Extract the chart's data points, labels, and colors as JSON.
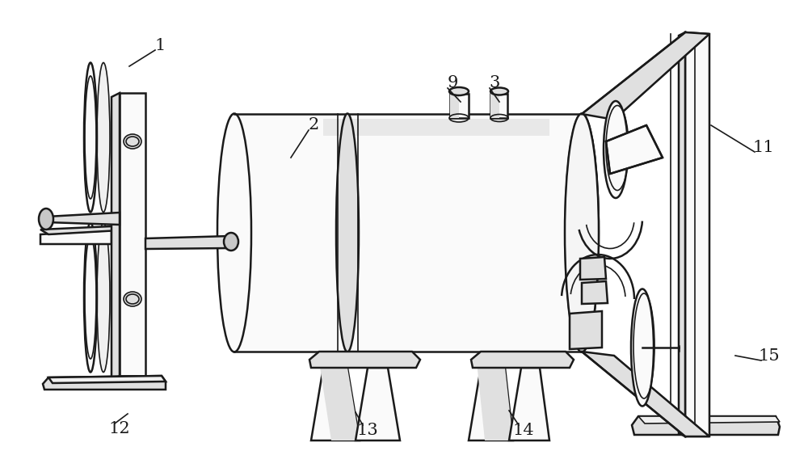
{
  "bg_color": "#ffffff",
  "line_color": "#1a1a1a",
  "lw": 1.8,
  "lw_thin": 1.2,
  "gray_light": "#f0f0f0",
  "gray_mid": "#e0e0e0",
  "gray_dark": "#c8c8c8"
}
